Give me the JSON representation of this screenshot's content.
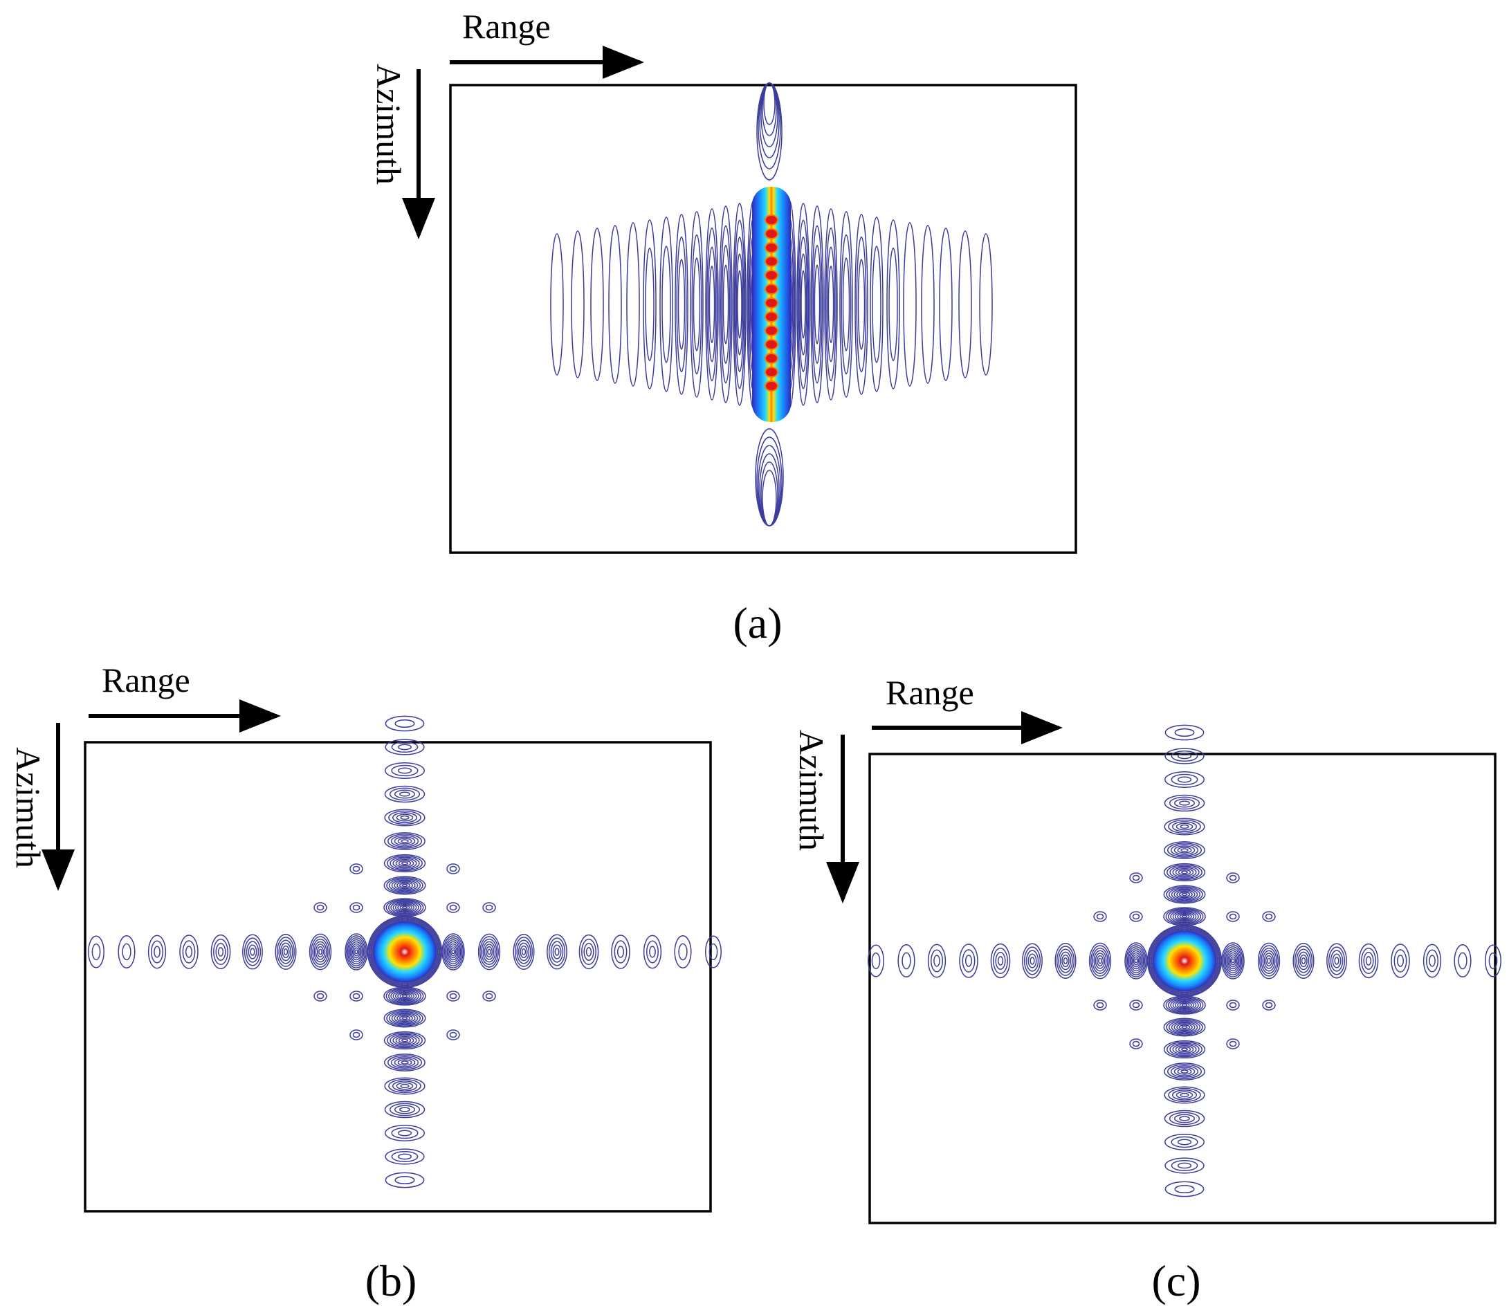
{
  "labels": {
    "range": "Range",
    "azimuth": "Azimuth"
  },
  "panels": [
    {
      "id": "a",
      "caption": "(a)",
      "kind": "smeared"
    },
    {
      "id": "b",
      "caption": "(b)",
      "kind": "cross"
    },
    {
      "id": "c",
      "caption": "(c)",
      "kind": "cross"
    }
  ],
  "colors": {
    "contour_line": "#3c3c9c",
    "peak_colormap": [
      "#2a2ac8",
      "#1a8cff",
      "#28d8ff",
      "#ffe400",
      "#ff7800",
      "#e01818",
      "#ffffff"
    ],
    "frame": "#000000",
    "arrow": "#000000"
  }
}
